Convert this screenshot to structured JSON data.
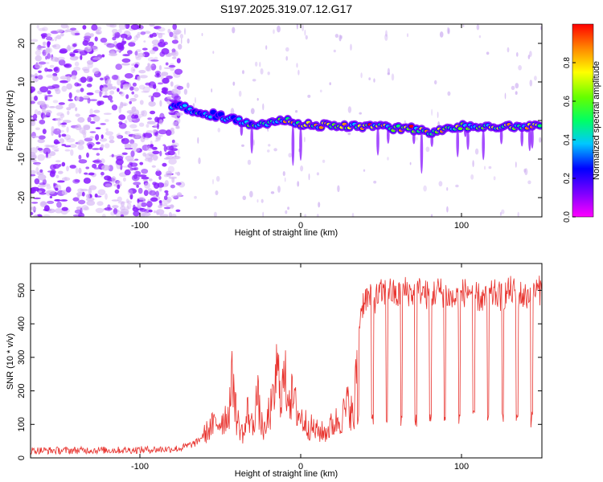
{
  "title": "S197.2025.319.07.12.G17",
  "chart_data": [
    {
      "type": "heatmap",
      "name": "spectrogram",
      "xlabel": "Height of straight line (km)",
      "ylabel": "Frequency (Hz)",
      "xlim": [
        -168,
        150
      ],
      "ylim": [
        -25,
        25
      ],
      "xticks": [
        -100,
        0,
        100
      ],
      "xtick_labels": [
        "-100",
        "0",
        "100"
      ],
      "yticks": [
        -20,
        -10,
        0,
        10,
        20
      ],
      "ytick_labels": [
        "-20",
        "-10",
        "0",
        "10",
        "20"
      ],
      "colorbar": {
        "label": "Normalized spectral amplitude",
        "range": [
          0,
          1
        ],
        "ticks": [
          0.0,
          0.2,
          0.4,
          0.6,
          0.8
        ],
        "tick_labels": [
          "0.0",
          "0.2",
          "0.4",
          "0.6",
          "0.8"
        ],
        "colormap": [
          "#ff00ff",
          "#7f00ff",
          "#0000ff",
          "#00c8ff",
          "#00ff64",
          "#64ff00",
          "#ffff00",
          "#ff8c00",
          "#ff0000"
        ]
      },
      "noise_region_x": [
        -168,
        -80
      ],
      "ridge": {
        "x": [
          -80,
          -70,
          -60,
          -50,
          -40,
          -30,
          -20,
          -10,
          0,
          10,
          20,
          30,
          40,
          50,
          60,
          70,
          80,
          90,
          100,
          110,
          120,
          130,
          140,
          150
        ],
        "freq": [
          4,
          3,
          2,
          1,
          0,
          -1,
          -0.5,
          0,
          -0.8,
          -1.2,
          -1.4,
          -1.5,
          -1.5,
          -1.6,
          -2,
          -2.2,
          -3,
          -2.5,
          -1.5,
          -1.5,
          -1.4,
          -1.5,
          -1.5,
          -1.5
        ]
      }
    },
    {
      "type": "line",
      "name": "snr",
      "xlabel": "Height of straight line (km)",
      "ylabel": "SNR (10 * v/v)",
      "xlim": [
        -168,
        150
      ],
      "ylim": [
        0,
        580
      ],
      "xticks": [
        -100,
        0,
        100
      ],
      "xtick_labels": [
        "-100",
        "0",
        "100"
      ],
      "yticks": [
        0,
        100,
        200,
        300,
        400,
        500
      ],
      "ytick_labels": [
        "0",
        "100",
        "200",
        "300",
        "400",
        "500"
      ],
      "color": "#e8322d",
      "series": [
        {
          "name": "SNR",
          "x": [
            -168,
            -150,
            -130,
            -110,
            -90,
            -75,
            -65,
            -60,
            -55,
            -50,
            -45,
            -42,
            -40,
            -37,
            -35,
            -33,
            -30,
            -27,
            -25,
            -22,
            -20,
            -17,
            -15,
            -12,
            -10,
            -8,
            -5,
            -2,
            0,
            5,
            10,
            15,
            20,
            25,
            28,
            30,
            32,
            33,
            34,
            35,
            36,
            38,
            40,
            45,
            50,
            55,
            60,
            65,
            70,
            75,
            80,
            85,
            90,
            95,
            100,
            105,
            110,
            115,
            120,
            125,
            130,
            135,
            140,
            145,
            150
          ],
          "values": [
            22,
            22,
            23,
            23,
            25,
            28,
            45,
            70,
            95,
            110,
            130,
            250,
            120,
            80,
            70,
            140,
            90,
            190,
            110,
            70,
            130,
            160,
            260,
            200,
            230,
            210,
            170,
            140,
            120,
            95,
            80,
            75,
            100,
            120,
            140,
            170,
            130,
            90,
            200,
            300,
            400,
            450,
            480,
            470,
            490,
            500,
            480,
            500,
            490,
            500,
            480,
            500,
            490,
            470,
            490,
            500,
            480,
            470,
            490,
            480,
            500,
            490,
            480,
            500,
            500
          ]
        }
      ]
    }
  ]
}
